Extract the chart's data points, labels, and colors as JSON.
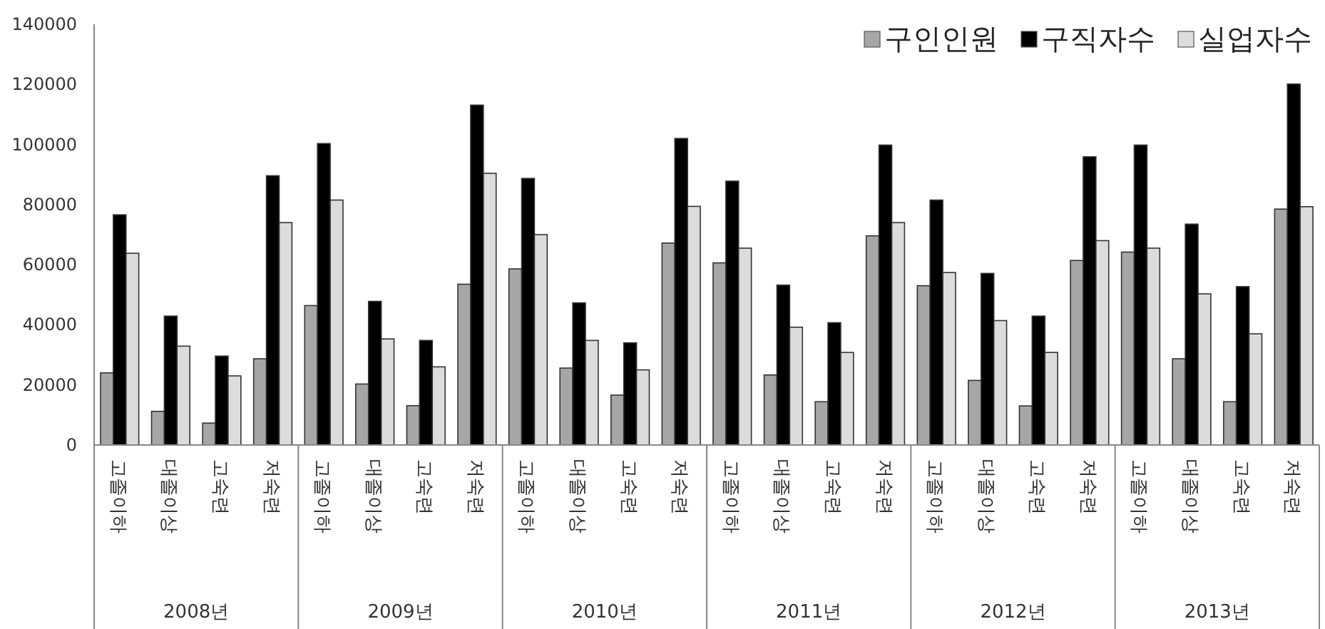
{
  "chart_data": {
    "type": "bar",
    "categories": [
      "고졸이하",
      "대졸이상",
      "고숙련",
      "저숙련",
      "고졸이하",
      "대졸이상",
      "고숙련",
      "저숙련",
      "고졸이하",
      "대졸이상",
      "고숙련",
      "저숙련",
      "고졸이하",
      "대졸이상",
      "고숙련",
      "저숙련",
      "고졸이하",
      "대졸이상",
      "고숙련",
      "저숙련",
      "고졸이하",
      "대졸이상",
      "고숙련",
      "저숙련"
    ],
    "series": [
      {
        "name": "구인인원",
        "color": "#a6a6a6",
        "values": [
          24000,
          11200,
          7300,
          28700,
          46400,
          20300,
          13100,
          53500,
          58600,
          25600,
          16600,
          67200,
          60600,
          23300,
          14400,
          69600,
          53000,
          21500,
          13000,
          61400,
          64200,
          28700,
          14400,
          78500
        ]
      },
      {
        "name": "구직자수",
        "color": "#000000",
        "values": [
          76600,
          42900,
          29600,
          89600,
          100300,
          47800,
          34800,
          113100,
          88700,
          47300,
          34000,
          102000,
          87800,
          53200,
          40700,
          99800,
          81500,
          57100,
          42900,
          95900,
          99800,
          73500,
          52700,
          120100
        ]
      },
      {
        "name": "실업자수",
        "color": "#dcdcdc",
        "values": [
          63800,
          32900,
          23000,
          74000,
          81500,
          35300,
          26000,
          90400,
          70000,
          34800,
          25000,
          79400,
          65500,
          39200,
          30800,
          74000,
          57400,
          41400,
          30800,
          68000,
          65500,
          50300,
          37000,
          79300
        ]
      }
    ],
    "annotations": [
      "2008년",
      "2009년",
      "2010년",
      "2011년",
      "2012년",
      "2013년"
    ],
    "ylim": [
      0,
      140000
    ],
    "yticks": [
      0,
      20000,
      40000,
      60000,
      80000,
      100000,
      120000,
      140000
    ],
    "grid": false,
    "legend": "top right"
  }
}
